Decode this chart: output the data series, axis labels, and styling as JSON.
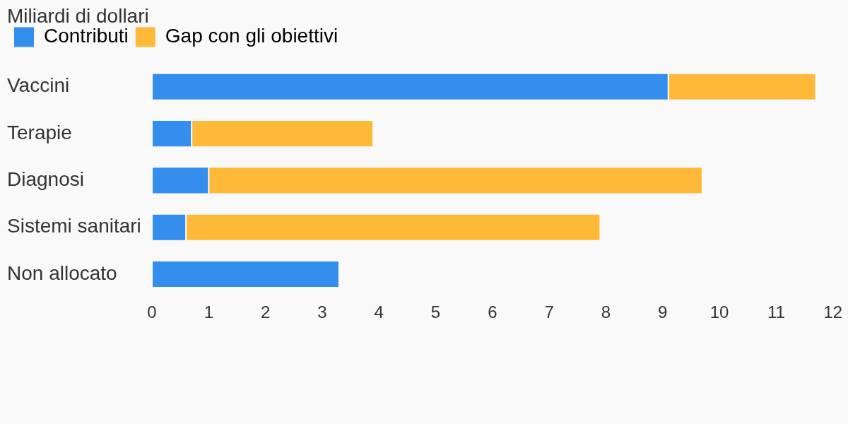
{
  "chart_data": {
    "type": "bar",
    "orientation": "horizontal",
    "stacked": true,
    "title": "Miliardi di dollari",
    "categories": [
      "Vaccini",
      "Terapie",
      "Diagnosi",
      "Sistemi sanitari",
      "Non allocato"
    ],
    "series": [
      {
        "name": "Contributi",
        "color": "#338eed",
        "values": [
          9.1,
          0.7,
          1.0,
          0.6,
          3.3
        ]
      },
      {
        "name": "Gap con gli obiettivi",
        "color": "#ffb938",
        "values": [
          2.6,
          3.2,
          8.7,
          7.3,
          null
        ]
      }
    ],
    "xlim": [
      0,
      12
    ],
    "xticks": [
      0,
      1,
      2,
      3,
      4,
      5,
      6,
      7,
      8,
      9,
      10,
      11,
      12
    ],
    "grid": false,
    "legend": "top left"
  }
}
